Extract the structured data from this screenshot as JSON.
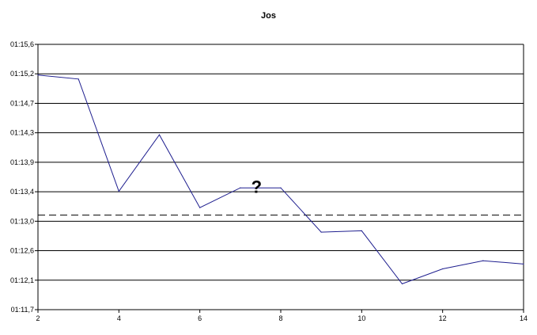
{
  "chart_data": {
    "type": "line",
    "title": "Jos",
    "xlabel": "",
    "ylabel": "",
    "x": [
      2,
      3,
      4,
      5,
      6,
      7,
      8,
      9,
      10,
      11,
      12,
      13,
      14
    ],
    "x_ticks": [
      "2",
      "4",
      "6",
      "8",
      "10",
      "12",
      "14"
    ],
    "xlim": [
      2,
      14
    ],
    "y_ticks": [
      "01:11,7",
      "01:12,1",
      "01:12,6",
      "01:13,0",
      "01:13,4",
      "01:13,9",
      "01:14,3",
      "01:14,7",
      "01:15,2",
      "01:15,6"
    ],
    "y_unit": "seconds",
    "ylim": [
      71.7,
      75.6
    ],
    "series": [
      {
        "values": [
          75.15,
          75.09,
          73.44,
          74.27,
          73.2,
          73.49,
          73.49,
          72.84,
          72.86,
          72.08,
          72.3,
          72.42,
          72.37
        ],
        "color": "#1f1f8f"
      }
    ],
    "reference_lines": [
      {
        "y": 73.09,
        "style": "dashed",
        "color": "#000000"
      }
    ],
    "annotations": [
      {
        "text": "?",
        "x": 7.4,
        "y": 73.42
      }
    ],
    "grid": "horizontal"
  }
}
